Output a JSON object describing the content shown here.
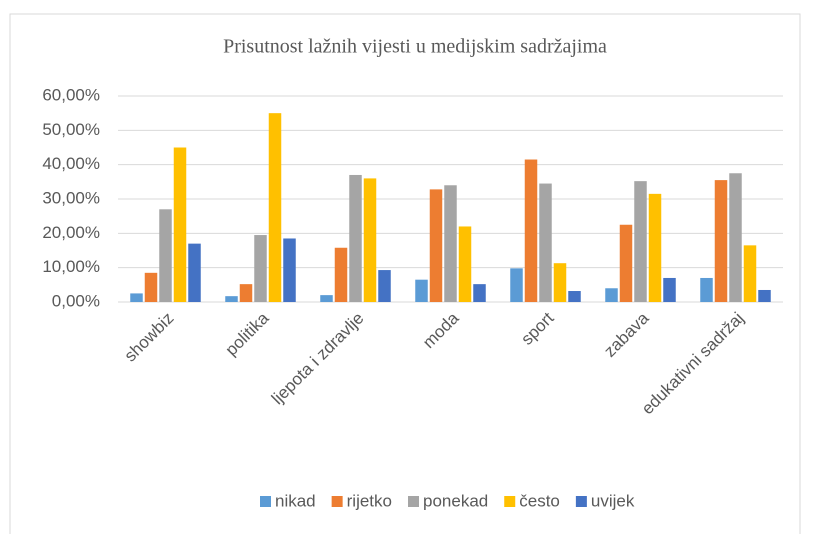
{
  "chart_data": {
    "type": "bar",
    "title": "Prisutnost lažnih vijesti u medijskim sadržajima",
    "categories": [
      "showbiz",
      "politika",
      "ljepota i zdravlje",
      "moda",
      "sport",
      "zabava",
      "edukativni sadržaj"
    ],
    "series": [
      {
        "name": "nikad",
        "color": "#5b9bd5",
        "values": [
          2.5,
          1.7,
          2,
          6.5,
          9.8,
          4,
          7
        ]
      },
      {
        "name": "rijetko",
        "color": "#ed7d31",
        "values": [
          8.5,
          5.2,
          15.8,
          32.8,
          41.5,
          22.5,
          35.5
        ]
      },
      {
        "name": "ponekad",
        "color": "#a5a5a5",
        "values": [
          27,
          19.5,
          37,
          34,
          34.5,
          35.2,
          37.5
        ]
      },
      {
        "name": "često",
        "color": "#ffc000",
        "values": [
          45,
          55,
          36,
          22,
          11.3,
          31.5,
          16.5
        ]
      },
      {
        "name": "uvijek",
        "color": "#4472c4",
        "values": [
          17,
          18.5,
          9.3,
          5.2,
          3.2,
          7,
          3.5
        ]
      }
    ],
    "ylim": [
      0,
      60
    ],
    "yticks": [
      {
        "value": 0,
        "label": "0,00%"
      },
      {
        "value": 10,
        "label": "10,00%"
      },
      {
        "value": 20,
        "label": "20,00%"
      },
      {
        "value": 30,
        "label": "30,00%"
      },
      {
        "value": 40,
        "label": "40,00%"
      },
      {
        "value": 50,
        "label": "50,00%"
      },
      {
        "value": 60,
        "label": "60,00%"
      }
    ],
    "grid": true
  }
}
